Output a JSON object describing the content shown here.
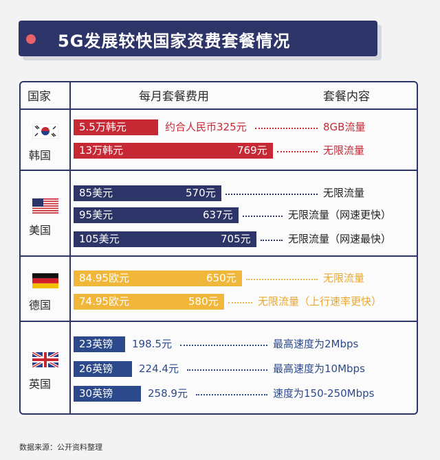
{
  "title": "5G发展较快国家资费套餐情况",
  "headers": {
    "country": "国家",
    "fee": "每月套餐费用",
    "content": "套餐内容"
  },
  "source": "数据来源：公开资料整理",
  "colors": {
    "korea": "#c62834",
    "usa": "#2d3468",
    "germany": "#f0b73a",
    "uk": "#2c4a8b",
    "navy": "#2d3468"
  },
  "chart_data": {
    "type": "bar",
    "title": "5G发展较快国家资费套餐情况",
    "xlabel": "每月套餐费用",
    "ylabel": "国家",
    "unit": "元 (人民币)",
    "xlim": [
      0,
      900
    ],
    "groups": [
      {
        "country": "韩国",
        "flag": "south-korea-flag",
        "plans": [
          {
            "local_price": "5.5万韩元",
            "rmb_label": "约合人民币325元",
            "rmb": 325,
            "content": "8GB流量"
          },
          {
            "local_price": "13万韩元",
            "rmb_label": "769元",
            "rmb": 769,
            "content": "无限流量"
          }
        ]
      },
      {
        "country": "美国",
        "flag": "usa-flag",
        "plans": [
          {
            "local_price": "85美元",
            "rmb_label": "570元",
            "rmb": 570,
            "content": "无限流量"
          },
          {
            "local_price": "95美元",
            "rmb_label": "637元",
            "rmb": 637,
            "content": "无限流量（网速更快）"
          },
          {
            "local_price": "105美元",
            "rmb_label": "705元",
            "rmb": 705,
            "content": "无限流量（网速最快）"
          }
        ]
      },
      {
        "country": "德国",
        "flag": "germany-flag",
        "plans": [
          {
            "local_price": "84.95欧元",
            "rmb_label": "650元",
            "rmb": 650,
            "content": "无限流量"
          },
          {
            "local_price": "74.95欧元",
            "rmb_label": "580元",
            "rmb": 580,
            "content": "无限流量（上行速率更快）"
          }
        ]
      },
      {
        "country": "英国",
        "flag": "uk-flag",
        "plans": [
          {
            "local_price": "23英镑",
            "rmb_label": "198.5元",
            "rmb": 198.5,
            "content": "最高速度为2Mbps"
          },
          {
            "local_price": "26英镑",
            "rmb_label": "224.4元",
            "rmb": 224.4,
            "content": "最高速度为10Mbps"
          },
          {
            "local_price": "30英镑",
            "rmb_label": "258.9元",
            "rmb": 258.9,
            "content": "速度为150-250Mbps"
          }
        ]
      }
    ]
  }
}
